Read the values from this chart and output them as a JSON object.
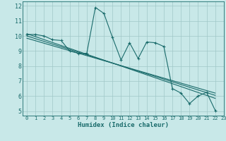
{
  "xlabel": "Humidex (Indice chaleur)",
  "bg_color": "#c8e8e8",
  "grid_color": "#a0c8c8",
  "line_color": "#1a6b6b",
  "xlim": [
    -0.5,
    23
  ],
  "ylim": [
    4.7,
    12.3
  ],
  "yticks": [
    5,
    6,
    7,
    8,
    9,
    10,
    11,
    12
  ],
  "xticks": [
    0,
    1,
    2,
    3,
    4,
    5,
    6,
    7,
    8,
    9,
    10,
    11,
    12,
    13,
    14,
    15,
    16,
    17,
    18,
    19,
    20,
    21,
    22,
    23
  ],
  "series": [
    [
      0,
      10.1
    ],
    [
      1,
      10.1
    ],
    [
      2,
      10.0
    ],
    [
      3,
      9.75
    ],
    [
      4,
      9.7
    ],
    [
      5,
      9.0
    ],
    [
      6,
      8.85
    ],
    [
      7,
      8.85
    ],
    [
      8,
      11.9
    ],
    [
      9,
      11.5
    ],
    [
      10,
      9.9
    ],
    [
      11,
      8.4
    ],
    [
      12,
      9.55
    ],
    [
      13,
      8.5
    ],
    [
      14,
      9.6
    ],
    [
      15,
      9.55
    ],
    [
      16,
      9.3
    ],
    [
      17,
      6.5
    ],
    [
      18,
      6.2
    ],
    [
      19,
      5.5
    ],
    [
      20,
      6.0
    ],
    [
      21,
      6.25
    ],
    [
      22,
      5.05
    ]
  ],
  "trend_lines": [
    [
      [
        0,
        10.15
      ],
      [
        22,
        5.85
      ]
    ],
    [
      [
        0,
        10.0
      ],
      [
        22,
        6.05
      ]
    ],
    [
      [
        0,
        9.85
      ],
      [
        22,
        6.2
      ]
    ]
  ]
}
